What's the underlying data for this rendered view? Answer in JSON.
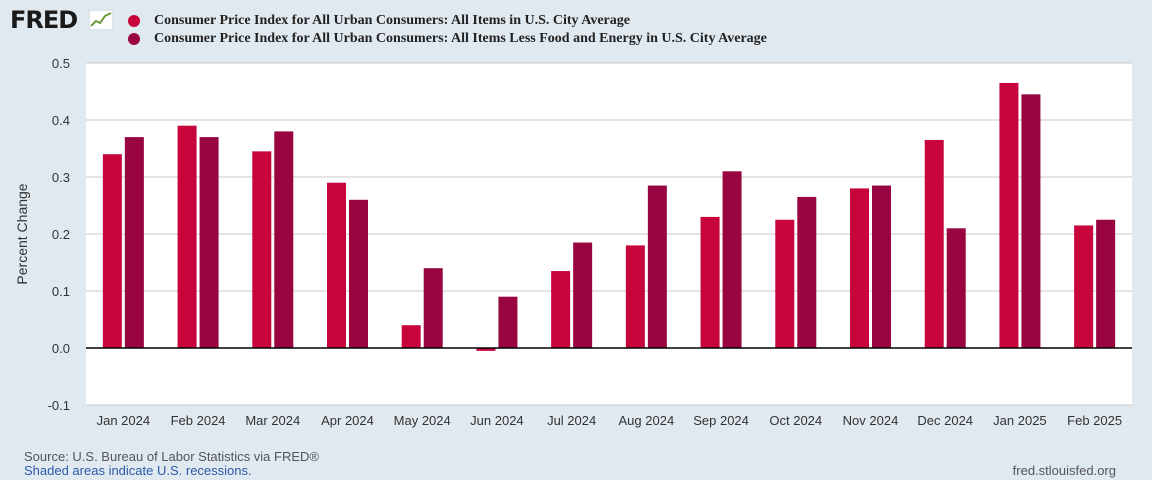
{
  "header": {
    "logo_text": "FRED",
    "legend": [
      {
        "name": "Consumer Price Index for All Urban Consumers: All Items in U.S. City Average",
        "color": "#c8043c"
      },
      {
        "name": "Consumer Price Index for All Urban Consumers: All Items Less Food and Energy in U.S. City Average",
        "color": "#980540"
      }
    ]
  },
  "chart_data": {
    "type": "bar",
    "title": "",
    "xlabel": "",
    "ylabel": "Percent Change",
    "ylim": [
      -0.1,
      0.5
    ],
    "yticks": [
      "0.5",
      "0.4",
      "0.3",
      "0.2",
      "0.1",
      "0.0",
      "-0.1"
    ],
    "grid": true,
    "categories": [
      "Jan 2024",
      "Feb 2024",
      "Mar 2024",
      "Apr 2024",
      "May 2024",
      "Jun 2024",
      "Jul 2024",
      "Aug 2024",
      "Sep 2024",
      "Oct 2024",
      "Nov 2024",
      "Dec 2024",
      "Jan 2025",
      "Feb 2025"
    ],
    "series": [
      {
        "name": "Consumer Price Index for All Urban Consumers: All Items in U.S. City Average",
        "color": "#c8043c",
        "values": [
          0.34,
          0.39,
          0.345,
          0.29,
          0.04,
          -0.005,
          0.135,
          0.18,
          0.23,
          0.225,
          0.28,
          0.365,
          0.465,
          0.215
        ]
      },
      {
        "name": "Consumer Price Index for All Urban Consumers: All Items Less Food and Energy in U.S. City Average",
        "color": "#980540",
        "values": [
          0.37,
          0.37,
          0.38,
          0.26,
          0.14,
          0.09,
          0.185,
          0.285,
          0.31,
          0.265,
          0.285,
          0.21,
          0.445,
          0.225
        ]
      }
    ]
  },
  "footer": {
    "source": "Source: U.S. Bureau of Labor Statistics via FRED®",
    "recession_note": "Shaded areas indicate U.S. recessions.",
    "site": "fred.stlouisfed.org"
  }
}
